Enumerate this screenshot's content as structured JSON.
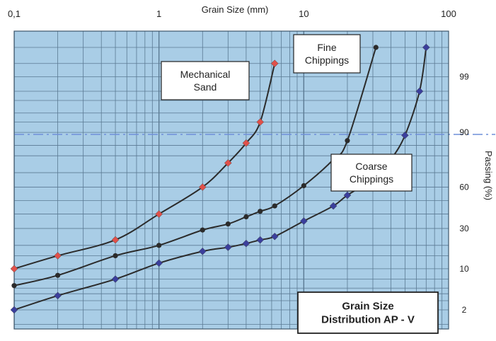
{
  "chart_data": {
    "type": "line",
    "title": "Grain Size\nDistribution AP - V",
    "xlabel": "Grain Size (mm)",
    "ylabel": "Passing (%)",
    "x_scale": "log",
    "y_scale": "probability",
    "xlim": [
      0.1,
      100
    ],
    "x_ticks": [
      0.1,
      1,
      10,
      100
    ],
    "x_tick_labels": [
      "0,1",
      "1",
      "10",
      "100"
    ],
    "y_ticks": [
      2,
      10,
      30,
      60,
      90,
      99
    ],
    "y_tick_labels": [
      "2",
      "10",
      "30",
      "60",
      "90",
      "99"
    ],
    "grid": true,
    "colors": {
      "background": "#a9cde6",
      "grid": "#5b7a93",
      "curve": "#2b2b2b",
      "mechanical_sand": "#e0504a",
      "coarse_chippings": "#3b3f9c",
      "fine_chippings": "#2b2b2b",
      "reference_line": "#6f8fd8"
    },
    "series": [
      {
        "name": "Mechanical Sand",
        "marker": "diamond",
        "points": [
          {
            "x": 0.1,
            "y": 10
          },
          {
            "x": 0.2,
            "y": 15
          },
          {
            "x": 0.5,
            "y": 23
          },
          {
            "x": 1,
            "y": 40
          },
          {
            "x": 2,
            "y": 60
          },
          {
            "x": 3,
            "y": 76
          },
          {
            "x": 4,
            "y": 86
          },
          {
            "x": 5,
            "y": 93
          },
          {
            "x": 6.3,
            "y": 99.5
          }
        ]
      },
      {
        "name": "Fine Chippings",
        "marker": "circle",
        "points": [
          {
            "x": 0.1,
            "y": 5.5
          },
          {
            "x": 0.2,
            "y": 8
          },
          {
            "x": 0.5,
            "y": 15
          },
          {
            "x": 1,
            "y": 20
          },
          {
            "x": 2,
            "y": 29
          },
          {
            "x": 3,
            "y": 33
          },
          {
            "x": 4,
            "y": 38
          },
          {
            "x": 5,
            "y": 42
          },
          {
            "x": 6.3,
            "y": 46
          },
          {
            "x": 10,
            "y": 61
          },
          {
            "x": 16,
            "y": 78
          },
          {
            "x": 20,
            "y": 87
          },
          {
            "x": 31.5,
            "y": 99.8
          }
        ]
      },
      {
        "name": "Coarse Chippings",
        "marker": "diamond",
        "points": [
          {
            "x": 0.1,
            "y": 2
          },
          {
            "x": 0.2,
            "y": 3.7
          },
          {
            "x": 0.5,
            "y": 7
          },
          {
            "x": 1,
            "y": 12
          },
          {
            "x": 2,
            "y": 17
          },
          {
            "x": 3,
            "y": 19
          },
          {
            "x": 4,
            "y": 21
          },
          {
            "x": 5,
            "y": 23
          },
          {
            "x": 6.3,
            "y": 25
          },
          {
            "x": 10,
            "y": 35
          },
          {
            "x": 16,
            "y": 46
          },
          {
            "x": 20,
            "y": 54
          },
          {
            "x": 31.5,
            "y": 67
          },
          {
            "x": 40,
            "y": 78
          },
          {
            "x": 50,
            "y": 89
          },
          {
            "x": 63,
            "y": 98
          },
          {
            "x": 70,
            "y": 99.8
          }
        ]
      }
    ],
    "annotations": [
      {
        "text": "Mechanical\nSand",
        "series": "Mechanical Sand"
      },
      {
        "text": "Fine\nChippings",
        "series": "Fine Chippings"
      },
      {
        "text": "Coarse\nChippings",
        "series": "Coarse Chippings"
      }
    ]
  }
}
